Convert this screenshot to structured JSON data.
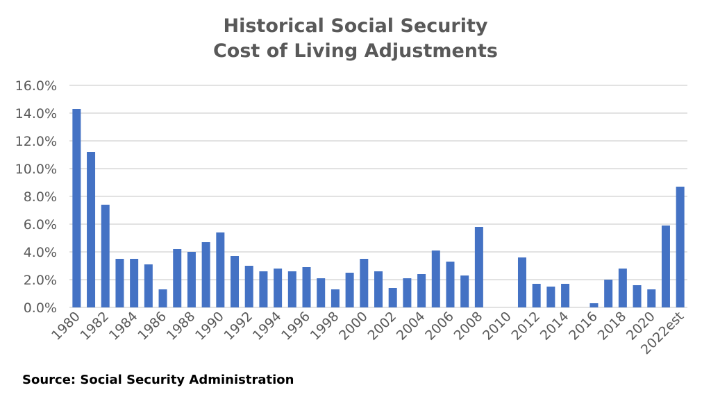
{
  "chart_data": {
    "type": "bar",
    "title_lines": [
      "Historical Social Security",
      "Cost of Living Adjustments"
    ],
    "source": "Source: Social Security Administration",
    "categories": [
      "1980",
      "1981",
      "1982",
      "1983",
      "1984",
      "1985",
      "1986",
      "1987",
      "1988",
      "1989",
      "1990",
      "1991",
      "1992",
      "1993",
      "1994",
      "1995",
      "1996",
      "1997",
      "1998",
      "1999",
      "2000",
      "2001",
      "2002",
      "2003",
      "2004",
      "2005",
      "2006",
      "2007",
      "2008",
      "2009",
      "2010",
      "2011",
      "2012",
      "2013",
      "2014",
      "2015",
      "2016",
      "2017",
      "2018",
      "2019",
      "2020",
      "2021",
      "2022est"
    ],
    "values": [
      14.3,
      11.2,
      7.4,
      3.5,
      3.5,
      3.1,
      1.3,
      4.2,
      4.0,
      4.7,
      5.4,
      3.7,
      3.0,
      2.6,
      2.8,
      2.6,
      2.9,
      2.1,
      1.3,
      2.5,
      3.5,
      2.6,
      1.4,
      2.1,
      2.4,
      4.1,
      3.3,
      2.3,
      5.8,
      0,
      0,
      3.6,
      1.7,
      1.5,
      1.7,
      0,
      0.3,
      2.0,
      2.8,
      1.6,
      1.3,
      5.9,
      8.7
    ],
    "ylim": [
      0,
      16
    ],
    "yticks": [
      "0.0%",
      "2.0%",
      "4.0%",
      "6.0%",
      "8.0%",
      "10.0%",
      "12.0%",
      "14.0%",
      "16.0%"
    ],
    "xtick_labels_shown": [
      "1980",
      "1982",
      "1984",
      "1986",
      "1988",
      "1990",
      "1992",
      "1994",
      "1996",
      "1998",
      "2000",
      "2002",
      "2004",
      "2006",
      "2008",
      "2010",
      "2012",
      "2014",
      "2016",
      "2018",
      "2020",
      "2022est"
    ],
    "grid": true,
    "bar_color": "#4472C4",
    "grid_color": "#D9D9D9"
  }
}
